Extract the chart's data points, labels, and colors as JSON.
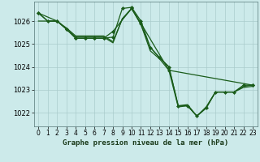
{
  "background_color": "#cceaea",
  "grid_color": "#aacccc",
  "line_color": "#1a5c1a",
  "line_width": 0.9,
  "marker": "D",
  "marker_size": 2.0,
  "xlabel": "Graphe pression niveau de la mer (hPa)",
  "xlabel_fontsize": 6.5,
  "ylabel_fontsize": 6,
  "tick_fontsize": 5.5,
  "xlim": [
    -0.5,
    23.5
  ],
  "ylim": [
    1021.4,
    1026.85
  ],
  "yticks": [
    1022,
    1023,
    1024,
    1025,
    1026
  ],
  "xticks": [
    0,
    1,
    2,
    3,
    4,
    5,
    6,
    7,
    8,
    9,
    10,
    11,
    12,
    13,
    14,
    15,
    16,
    17,
    18,
    19,
    20,
    21,
    22,
    23
  ],
  "series": [
    {
      "x": [
        0,
        1,
        2,
        3,
        4,
        5,
        6,
        7,
        8,
        9,
        10,
        11,
        12,
        13,
        14,
        15,
        16,
        17,
        18,
        19,
        20,
        21,
        22,
        23
      ],
      "y": [
        1026.35,
        1026.0,
        1026.0,
        1025.65,
        1025.25,
        1025.25,
        1025.25,
        1025.25,
        1025.3,
        1026.55,
        1026.6,
        1026.0,
        1024.85,
        1024.4,
        1024.0,
        1022.3,
        1022.3,
        1021.85,
        1022.2,
        1022.9,
        1022.9,
        1022.9,
        1023.2,
        1023.2
      ],
      "has_markers": true
    },
    {
      "x": [
        0,
        2,
        3,
        4,
        5,
        6,
        7,
        8,
        10,
        11,
        14,
        23
      ],
      "y": [
        1026.35,
        1026.0,
        1025.65,
        1025.25,
        1025.25,
        1025.25,
        1025.25,
        1025.55,
        1026.55,
        1025.9,
        1023.85,
        1023.2
      ],
      "has_markers": true
    },
    {
      "x": [
        0,
        1,
        2,
        3,
        4,
        5,
        6,
        7,
        8,
        9,
        10,
        11,
        12,
        13,
        14,
        15,
        16,
        17,
        18,
        19,
        20,
        21,
        22,
        23
      ],
      "y": [
        1026.35,
        1026.0,
        1026.0,
        1025.65,
        1025.3,
        1025.3,
        1025.3,
        1025.3,
        1025.05,
        1026.1,
        1026.55,
        1025.85,
        1024.7,
        1024.35,
        1023.85,
        1022.25,
        1022.3,
        1021.85,
        1022.25,
        1022.9,
        1022.9,
        1022.9,
        1023.15,
        1023.2
      ],
      "has_markers": false
    },
    {
      "x": [
        0,
        1,
        2,
        3,
        4,
        5,
        6,
        7,
        8,
        9,
        10,
        11,
        12,
        13,
        14,
        15,
        16,
        17,
        18,
        19,
        20,
        21,
        22,
        23
      ],
      "y": [
        1026.0,
        1026.0,
        1026.0,
        1025.7,
        1025.35,
        1025.35,
        1025.35,
        1025.35,
        1025.1,
        1026.1,
        1026.55,
        1025.85,
        1024.85,
        1024.4,
        1024.0,
        1022.3,
        1022.35,
        1021.85,
        1022.2,
        1022.9,
        1022.9,
        1022.9,
        1023.1,
        1023.15
      ],
      "has_markers": false
    }
  ]
}
